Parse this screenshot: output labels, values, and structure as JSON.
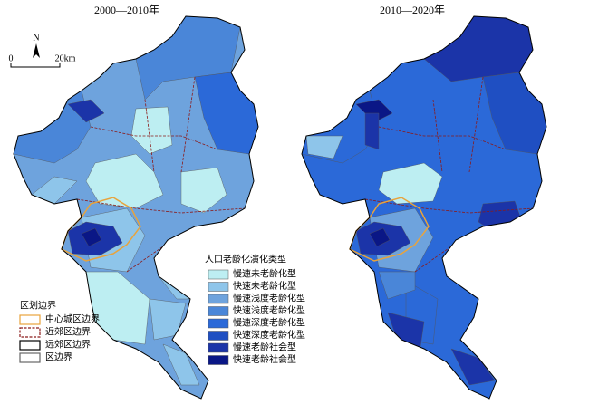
{
  "maps": [
    {
      "title": "2000—2010年"
    },
    {
      "title": "2010—2020年"
    }
  ],
  "north_arrow": "N",
  "scale_bar": {
    "labels": [
      "0",
      "20km"
    ]
  },
  "legend_types": {
    "title": "人口老龄化演化类型",
    "items": [
      {
        "label": "慢速未老龄化型",
        "color": "#bdeef2"
      },
      {
        "label": "快速未老龄化型",
        "color": "#8ec5ea"
      },
      {
        "label": "慢速浅度老龄化型",
        "color": "#6ea3dd"
      },
      {
        "label": "快速浅度老龄化型",
        "color": "#4a86d8"
      },
      {
        "label": "慢速深度老龄化型",
        "color": "#2b69d8"
      },
      {
        "label": "快速深度老龄化型",
        "color": "#1f4fc2"
      },
      {
        "label": "慢速老龄社会型",
        "color": "#1b34a8"
      },
      {
        "label": "快速老龄社会型",
        "color": "#0a1786"
      }
    ]
  },
  "legend_boundaries": {
    "title": "区划边界",
    "items": [
      {
        "label": "中心城区边界",
        "color": "#e8a33c"
      },
      {
        "label": "近郊区边界",
        "color": "#8b1a1a"
      },
      {
        "label": "远郊区边界",
        "color": "#000000"
      },
      {
        "label": "区边界",
        "color": "#666666"
      }
    ]
  }
}
